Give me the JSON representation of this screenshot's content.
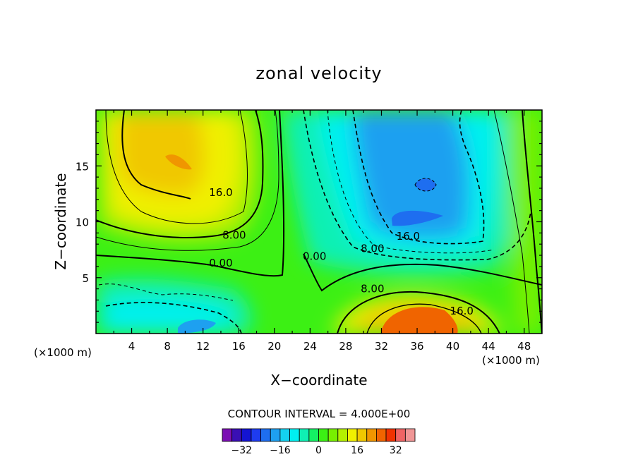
{
  "chart_data": {
    "type": "heatmap",
    "subtype": "filled-contour",
    "title": "zonal velocity",
    "xlabel": "X−coordinate",
    "ylabel": "Z−coordinate",
    "x_unit_label": "(×1000 m)",
    "y_unit_label": "(×1000 m)",
    "xlim": [
      0,
      50
    ],
    "ylim": [
      0,
      20
    ],
    "x_ticks": [
      4,
      8,
      12,
      16,
      20,
      24,
      28,
      32,
      36,
      40,
      44,
      48
    ],
    "y_ticks": [
      5,
      10,
      15
    ],
    "contour_interval_text": "CONTOUR INTERVAL = 4.000E+00",
    "contour_interval": 4.0,
    "colorbar": {
      "levels": [
        -36,
        -32,
        -28,
        -24,
        -20,
        -16,
        -12,
        -8,
        -4,
        0,
        4,
        8,
        12,
        16,
        20,
        24,
        28,
        32,
        36
      ],
      "colors": [
        "#7b0fb4",
        "#3a0fb4",
        "#1414d2",
        "#1e3cf0",
        "#1e6ef0",
        "#1ea0f0",
        "#14d2f0",
        "#00f0f0",
        "#0ff0b4",
        "#14f064",
        "#3cf014",
        "#78f000",
        "#b4f000",
        "#f0f000",
        "#f0c800",
        "#f09600",
        "#f06400",
        "#f03200",
        "#f06464",
        "#f09696"
      ],
      "tick_labels": [
        "−32",
        "−16",
        "0",
        "16",
        "32"
      ],
      "tick_values": [
        -32,
        -16,
        0,
        16,
        32
      ]
    },
    "contour_labels": [
      {
        "text": "16.0",
        "x": 14.0,
        "z": 12.3
      },
      {
        "text": "8.00",
        "x": 15.5,
        "z": 8.5
      },
      {
        "text": "0.00",
        "x": 14.0,
        "z": 6.0
      },
      {
        "text": "0.00",
        "x": 24.5,
        "z": 6.6
      },
      {
        "text": "16.0",
        "x": 35.0,
        "z": 8.4
      },
      {
        "text": "8.00",
        "x": 31.0,
        "z": 7.3
      },
      {
        "text": "8.00",
        "x": 31.0,
        "z": 3.7
      },
      {
        "text": "16.0",
        "x": 41.0,
        "z": 1.7
      }
    ]
  }
}
